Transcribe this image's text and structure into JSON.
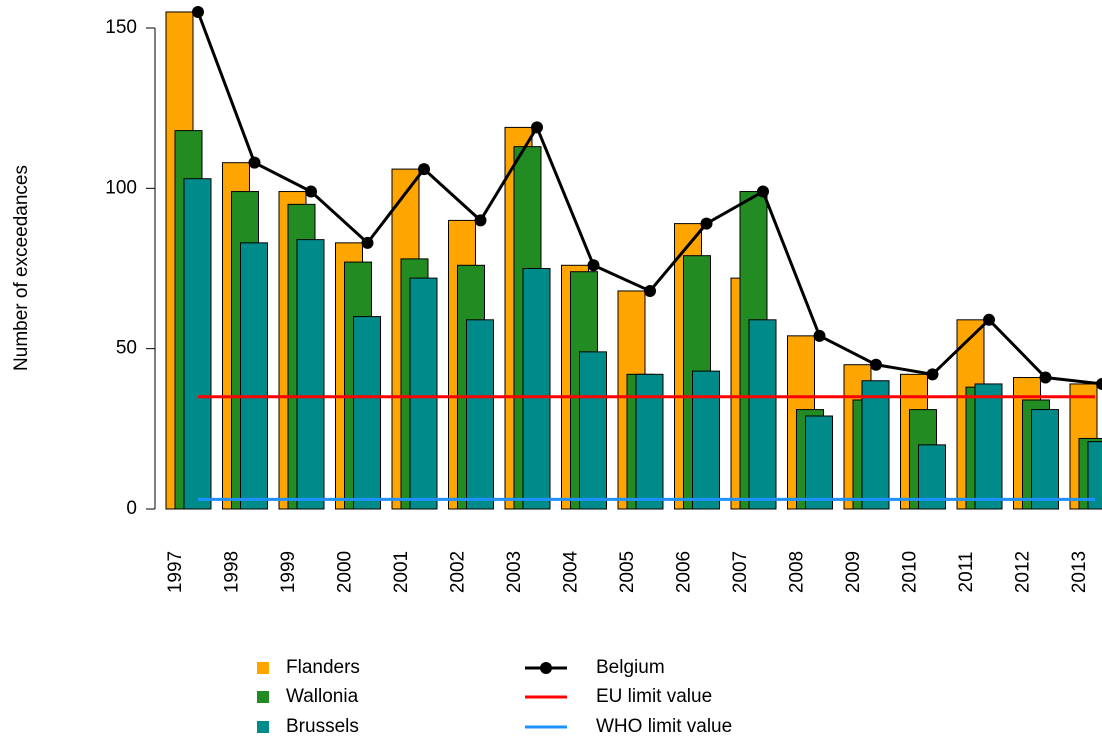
{
  "chart_data": {
    "type": "bar",
    "y_label": "Number of exceedances",
    "categories": [
      "1997",
      "1998",
      "1999",
      "2000",
      "2001",
      "2002",
      "2003",
      "2004",
      "2005",
      "2006",
      "2007",
      "2008",
      "2009",
      "2010",
      "2011",
      "2012",
      "2013"
    ],
    "series": [
      {
        "name": "Flanders",
        "color": "#ffa500",
        "type": "bar",
        "values": [
          155,
          108,
          99,
          83,
          106,
          90,
          119,
          76,
          68,
          89,
          72,
          54,
          45,
          42,
          59,
          41,
          39
        ]
      },
      {
        "name": "Wallonia",
        "color": "#228b22",
        "type": "bar",
        "values": [
          118,
          99,
          95,
          77,
          78,
          76,
          113,
          74,
          42,
          79,
          99,
          31,
          34,
          31,
          38,
          34,
          22
        ]
      },
      {
        "name": "Brussels",
        "color": "#008b8b",
        "type": "bar",
        "values": [
          103,
          83,
          84,
          60,
          72,
          59,
          75,
          49,
          42,
          43,
          59,
          29,
          40,
          20,
          39,
          31,
          21
        ]
      },
      {
        "name": "Belgium",
        "color": "#000000",
        "type": "line",
        "values": [
          155,
          108,
          99,
          83,
          106,
          90,
          119,
          76,
          68,
          89,
          99,
          54,
          45,
          42,
          59,
          41,
          39
        ]
      }
    ],
    "reference_lines": [
      {
        "name": "EU limit value",
        "color": "#ff0000",
        "value": 35
      },
      {
        "name": "WHO limit value",
        "color": "#1e90ff",
        "value": 3
      }
    ],
    "ylim": [
      0,
      150
    ],
    "yticks": [
      0,
      50,
      100,
      150
    ]
  }
}
